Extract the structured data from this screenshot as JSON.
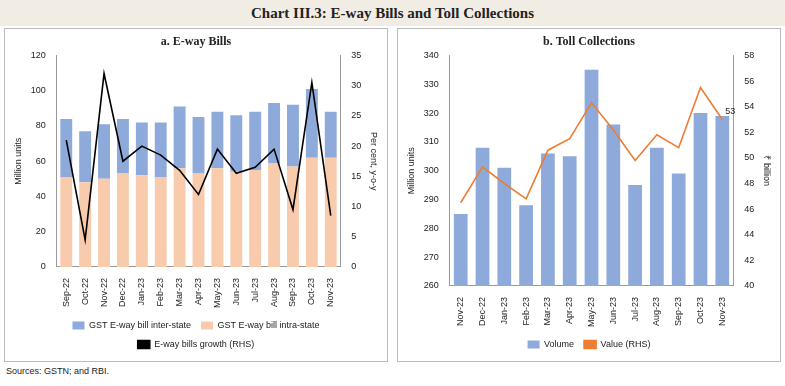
{
  "title": "Chart III.3: E-way Bills and Toll Collections",
  "source": "Sources: GSTN; and RBI.",
  "chart_data": [
    {
      "type": "bar",
      "title": "a. E-way Bills",
      "categories": [
        "Sep-22",
        "Oct-22",
        "Nov-22",
        "Dec-22",
        "Jan-23",
        "Feb-23",
        "Mar-23",
        "Apr-23",
        "May-23",
        "Jun-23",
        "Jul-23",
        "Aug-23",
        "Sep-23",
        "Oct-23",
        "Nov-23"
      ],
      "series": [
        {
          "name": "GST E-way bill inter-state",
          "color": "#8eaadb",
          "values": [
            33,
            29,
            31,
            31,
            30,
            31,
            35,
            32,
            32,
            32,
            33,
            34,
            35,
            39,
            26
          ]
        },
        {
          "name": "GST E-way bill intra-state",
          "color": "#f8cbad",
          "values": [
            51,
            48,
            50,
            53,
            52,
            51,
            56,
            53,
            56,
            54,
            55,
            59,
            57,
            62,
            62
          ]
        },
        {
          "name": "E-way bills growth (RHS)",
          "type": "line",
          "axis": "y2",
          "color": "#000000",
          "values": [
            21,
            4.5,
            32,
            17.5,
            20,
            18.5,
            16,
            12,
            19.5,
            15.5,
            16.5,
            19.5,
            9.5,
            30.5,
            8.5
          ]
        }
      ],
      "y_label": "Million units",
      "y2_label": "Per cent, y-o-y",
      "ylim": [
        0,
        120
      ],
      "yticks": [
        0,
        20,
        40,
        60,
        80,
        100,
        120
      ],
      "y2lim": [
        0,
        35
      ],
      "y2ticks": [
        0,
        5,
        10,
        15,
        20,
        25,
        30,
        35
      ],
      "stacked": true,
      "grid": false,
      "legend": "bottom"
    },
    {
      "type": "bar",
      "title": "b. Toll Collections",
      "categories": [
        "Nov-22",
        "Dec-22",
        "Jan-23",
        "Feb-23",
        "Mar-23",
        "Apr-23",
        "May-23",
        "Jun-23",
        "Jul-23",
        "Aug-23",
        "Sep-23",
        "Oct-23",
        "Nov-23"
      ],
      "series": [
        {
          "name": "Volume",
          "color": "#8eaadb",
          "values": [
            285,
            308,
            301,
            288,
            306,
            305,
            335,
            316,
            295,
            308,
            299,
            320,
            319
          ]
        },
        {
          "name": "Value (RHS)",
          "type": "line",
          "axis": "y2",
          "color": "#ed7d31",
          "values": [
            46.5,
            49.3,
            48,
            46.8,
            50.6,
            51.5,
            54.3,
            52.2,
            49.8,
            51.8,
            50.8,
            55.5,
            53
          ]
        }
      ],
      "y_label": "Million units",
      "y2_label": "₹ billion",
      "ylim": [
        260,
        340
      ],
      "yticks": [
        260,
        270,
        280,
        290,
        300,
        310,
        320,
        330,
        340
      ],
      "y2lim": [
        40,
        58
      ],
      "y2ticks": [
        40,
        42,
        44,
        46,
        48,
        50,
        52,
        54,
        56,
        58
      ],
      "annotations": [
        {
          "text": "53",
          "x": "Nov-23",
          "y": 53,
          "axis": "y2"
        }
      ],
      "grid": false,
      "legend": "bottom"
    }
  ]
}
